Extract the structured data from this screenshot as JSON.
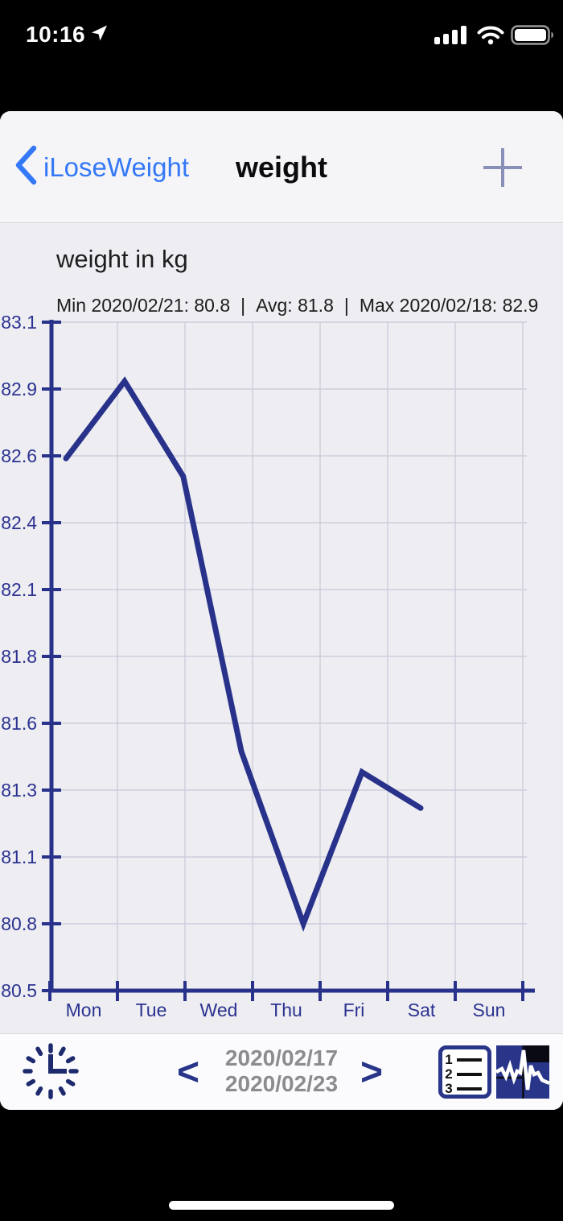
{
  "status_bar": {
    "time": "10:16"
  },
  "nav": {
    "back_label": "iLoseWeight",
    "title": "weight"
  },
  "chart": {
    "title": "weight in kg",
    "stats_min": "Min 2020/02/21: 80.8",
    "stats_avg": "Avg: 81.8",
    "stats_max": "Max 2020/02/18: 82.9",
    "stats_separator": "|"
  },
  "chart_data": {
    "type": "line",
    "title": "weight in kg",
    "x_labels": [
      "Mon",
      "Tue",
      "Wed",
      "Thu",
      "Fri",
      "Sat",
      "Sun"
    ],
    "y_tick_labels": [
      "83.1",
      "82.9",
      "82.6",
      "82.4",
      "82.1",
      "81.8",
      "81.6",
      "81.3",
      "81.1",
      "80.8",
      "80.5"
    ],
    "ylim": [
      80.5,
      83.1
    ],
    "points": [
      {
        "x_frac": 0.034,
        "value": 82.57
      },
      {
        "x_frac": 0.158,
        "value": 82.87
      },
      {
        "x_frac": 0.282,
        "value": 82.5
      },
      {
        "x_frac": 0.405,
        "value": 81.43
      },
      {
        "x_frac": 0.536,
        "value": 80.76
      },
      {
        "x_frac": 0.66,
        "value": 81.35
      },
      {
        "x_frac": 0.784,
        "value": 81.21
      }
    ],
    "stats": {
      "min_date": "2020/02/21",
      "min": 80.8,
      "avg": 81.8,
      "max_date": "2020/02/18",
      "max": 82.9
    },
    "grid": true,
    "legend": false,
    "line_color": "#28328a",
    "axis_color": "#28328a",
    "grid_color": "#c9c9d8",
    "label_color": "#2c3390"
  },
  "toolbar": {
    "prev_label": "<",
    "next_label": ">",
    "date_from": "2020/02/17",
    "date_to": "2020/02/23",
    "icons": [
      "clock-icon",
      "numbered-list-icon",
      "pulse-chart-icon"
    ]
  },
  "colors": {
    "accent_blue": "#3478f6",
    "navy": "#28328a",
    "grid": "#c9c9d8",
    "date_gray": "#8c8c90",
    "page_bg": "#ededf2"
  }
}
